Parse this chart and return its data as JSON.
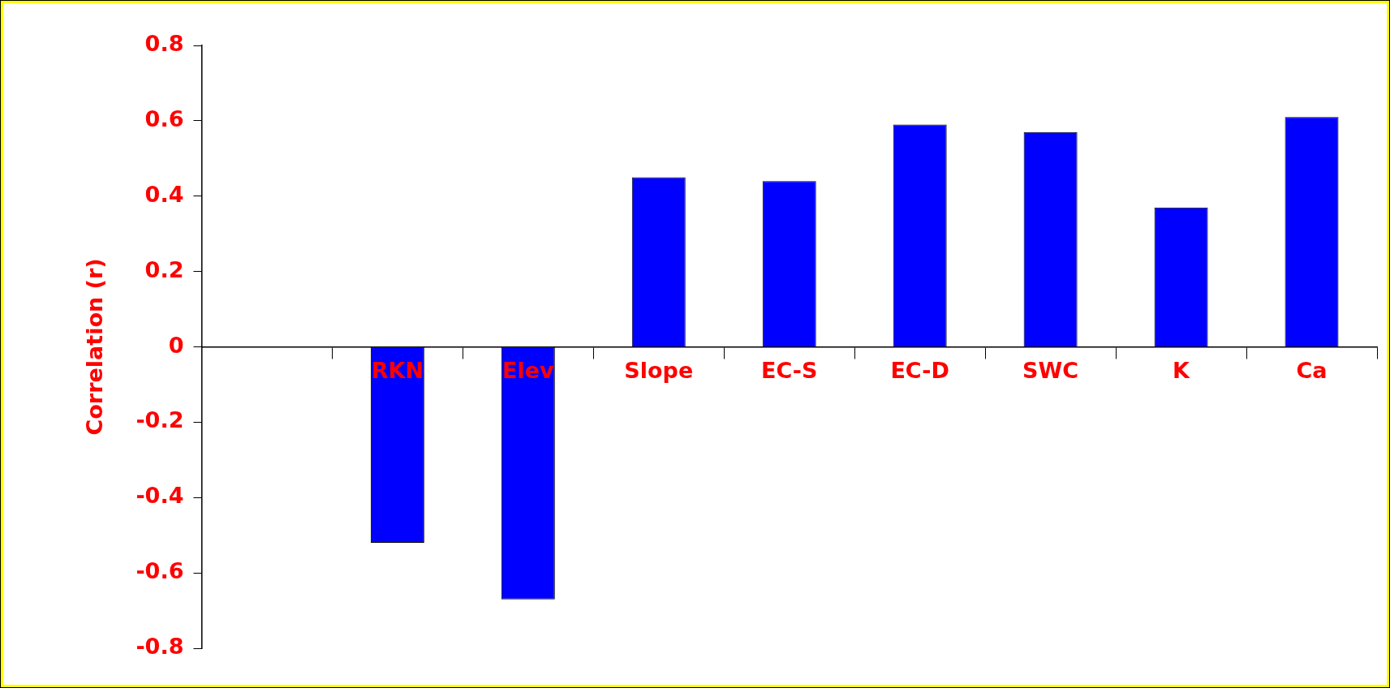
{
  "chart_data": {
    "type": "bar",
    "ylabel": "Correlation (r)",
    "categories": [
      null,
      "RKN",
      "Elev",
      "Slope",
      "EC-S",
      "EC-D",
      "SWC",
      "K",
      "Ca"
    ],
    "values": [
      null,
      -0.52,
      -0.67,
      0.45,
      0.44,
      0.59,
      0.57,
      0.37,
      0.61
    ],
    "color": "#0000ff",
    "ylim": [
      -0.8,
      0.8
    ],
    "yticks": [
      -0.8,
      -0.6,
      -0.4,
      -0.2,
      0,
      0.2,
      0.4,
      0.6,
      0.8
    ]
  }
}
